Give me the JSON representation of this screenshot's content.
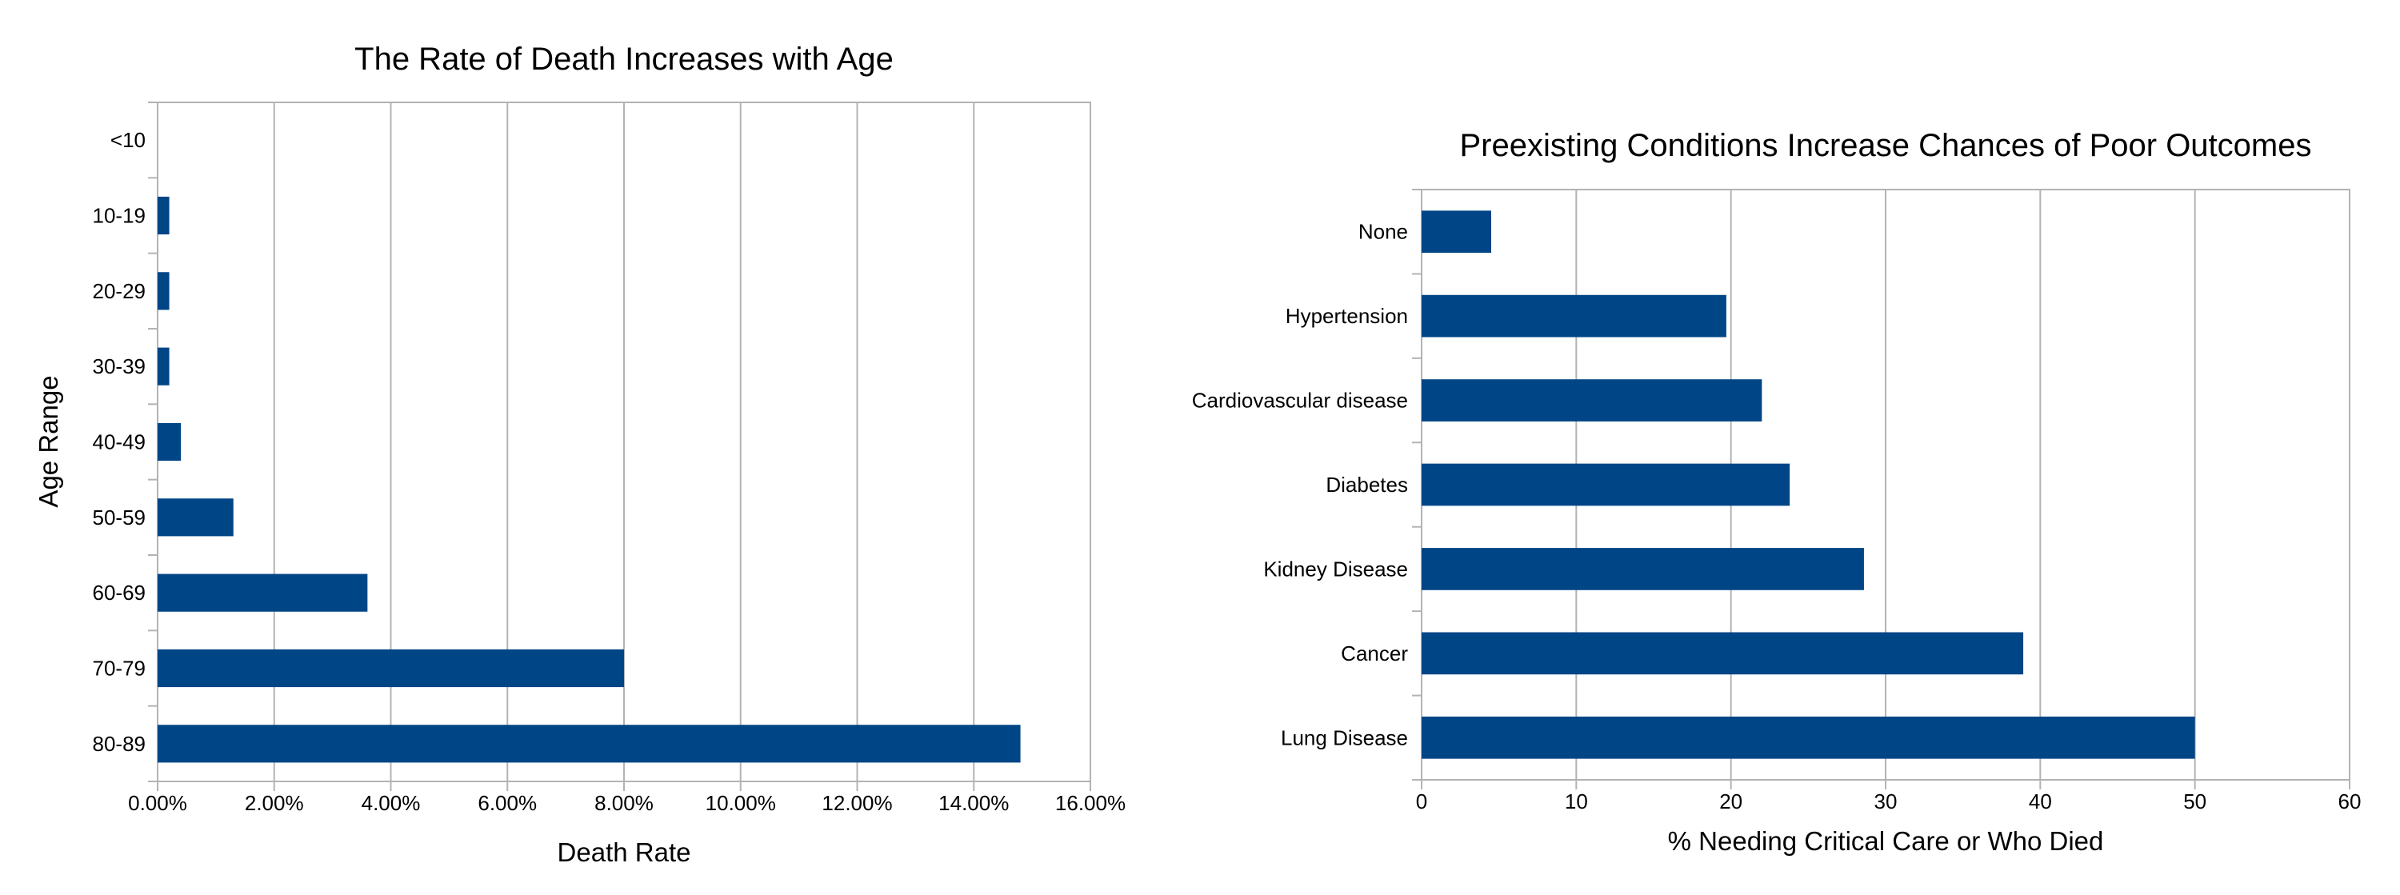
{
  "colors": {
    "bar": "#004586",
    "grid": "#b3b3b3",
    "text": "#000000"
  },
  "chart_data": [
    {
      "type": "bar",
      "orientation": "horizontal",
      "title": "The Rate of Death Increases with Age",
      "xlabel": "Death Rate",
      "ylabel": "Age Range",
      "categories": [
        "<10",
        "10-19",
        "20-29",
        "30-39",
        "40-49",
        "50-59",
        "60-69",
        "70-79",
        "80-89"
      ],
      "values": [
        0,
        0.002,
        0.002,
        0.002,
        0.004,
        0.013,
        0.036,
        0.08,
        0.148
      ],
      "xlim": [
        0,
        0.16
      ],
      "xticks": [
        0,
        0.02,
        0.04,
        0.06,
        0.08,
        0.1,
        0.12,
        0.14,
        0.16
      ],
      "xtick_labels": [
        "0.00%",
        "2.00%",
        "4.00%",
        "6.00%",
        "8.00%",
        "10.00%",
        "12.00%",
        "14.00%",
        "16.00%"
      ],
      "grid": true,
      "legend": "none"
    },
    {
      "type": "bar",
      "orientation": "horizontal",
      "title": "Preexisting Conditions Increase Chances of Poor Outcomes",
      "xlabel": "% Needing Critical Care or Who Died",
      "ylabel": "",
      "categories": [
        "None",
        "Hypertension",
        "Cardiovascular disease",
        "Diabetes",
        "Kidney Disease",
        "Cancer",
        "Lung Disease"
      ],
      "values": [
        4.5,
        19.7,
        22,
        23.8,
        28.6,
        38.9,
        50
      ],
      "xlim": [
        0,
        60
      ],
      "xticks": [
        0,
        10,
        20,
        30,
        40,
        50,
        60
      ],
      "xtick_labels": [
        "0",
        "10",
        "20",
        "30",
        "40",
        "50",
        "60"
      ],
      "grid": true,
      "legend": "none"
    }
  ]
}
